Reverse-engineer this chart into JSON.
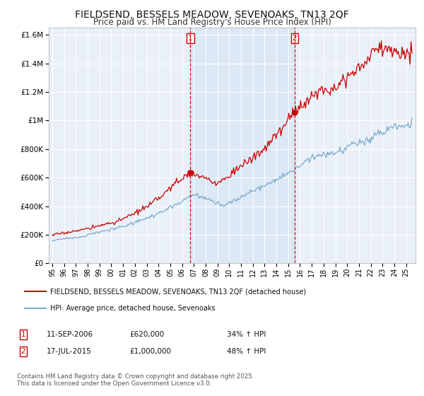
{
  "title": "FIELDSEND, BESSELS MEADOW, SEVENOAKS, TN13 2QF",
  "subtitle": "Price paid vs. HM Land Registry's House Price Index (HPI)",
  "sale1_date": "11-SEP-2006",
  "sale1_price": 620000,
  "sale1_price_str": "£620,000",
  "sale1_hpi": "34%",
  "sale2_date": "17-JUL-2015",
  "sale2_price": 1000000,
  "sale2_price_str": "£1,000,000",
  "sale2_hpi": "48%",
  "legend_red": "FIELDSEND, BESSELS MEADOW, SEVENOAKS, TN13 2QF (detached house)",
  "legend_blue": "HPI: Average price, detached house, Sevenoaks",
  "footnote": "Contains HM Land Registry data © Crown copyright and database right 2025.\nThis data is licensed under the Open Government Licence v3.0.",
  "red_color": "#cc0000",
  "blue_color": "#7aabcd",
  "vline_color": "#cc0000",
  "highlight_color": "#dce8f5",
  "background_color": "#ffffff",
  "plot_bg_color": "#eaf0f8",
  "ylim": [
    0,
    1650000
  ],
  "title_fontsize": 10,
  "subtitle_fontsize": 9,
  "sale1_x": 2006.71,
  "sale2_x": 2015.54
}
